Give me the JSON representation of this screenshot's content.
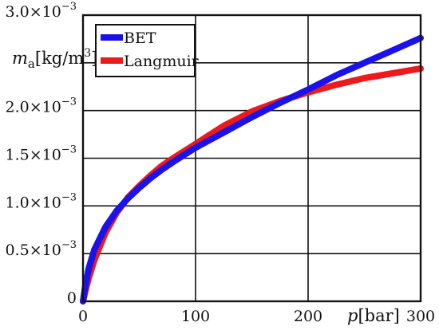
{
  "chart_data": {
    "type": "line",
    "title": "",
    "xlabel": {
      "var": "p",
      "unit": "[bar]"
    },
    "ylabel": {
      "var": "m",
      "sub": "a",
      "unit": "[kg/m",
      "sup": "3",
      "close": "]"
    },
    "xlim": [
      0,
      300
    ],
    "ylim": [
      0,
      0.003
    ],
    "grid": true,
    "legend": "top-left",
    "x_ticks": [
      {
        "value": 0,
        "label": "0"
      },
      {
        "value": 100,
        "label": "100"
      },
      {
        "value": 200,
        "label": "200"
      },
      {
        "value": 300,
        "label": "300"
      }
    ],
    "y_ticks": [
      {
        "value": 0,
        "mant": "0",
        "exp": ""
      },
      {
        "value": 0.0005,
        "mant": "0.5×10",
        "exp": "−3"
      },
      {
        "value": 0.001,
        "mant": "1.0×10",
        "exp": "−3"
      },
      {
        "value": 0.0015,
        "mant": "1.5×10",
        "exp": "−3"
      },
      {
        "value": 0.002,
        "mant": "2.0×10",
        "exp": "−3"
      },
      {
        "value": 0.0025,
        "mant": "",
        "exp": ""
      },
      {
        "value": 0.003,
        "mant": "3.0×10",
        "exp": "−3"
      }
    ],
    "series": [
      {
        "name": "BET",
        "color": "#1a12e8",
        "x": [
          0,
          2,
          5,
          10,
          20,
          30,
          40,
          50,
          60,
          70,
          80,
          100,
          125,
          150,
          175,
          200,
          225,
          250,
          275,
          300
        ],
        "y": [
          0,
          0.00016,
          0.00034,
          0.00054,
          0.00078,
          0.00095,
          0.00108,
          0.00119,
          0.00129,
          0.00138,
          0.00146,
          0.00161,
          0.00177,
          0.00193,
          0.00208,
          0.00222,
          0.00237,
          0.0025,
          0.00263,
          0.00276
        ]
      },
      {
        "name": "Langmuir",
        "color": "#ec1a1a",
        "x": [
          0,
          2,
          5,
          10,
          20,
          30,
          40,
          50,
          60,
          70,
          80,
          100,
          125,
          150,
          175,
          200,
          225,
          250,
          275,
          300
        ],
        "y": [
          0,
          0.0001,
          0.00024,
          0.00043,
          0.00072,
          0.00093,
          0.00109,
          0.00121,
          0.00132,
          0.00142,
          0.0015,
          0.00165,
          0.00184,
          0.00199,
          0.0021,
          0.00219,
          0.00227,
          0.00234,
          0.00239,
          0.00244
        ]
      }
    ]
  }
}
